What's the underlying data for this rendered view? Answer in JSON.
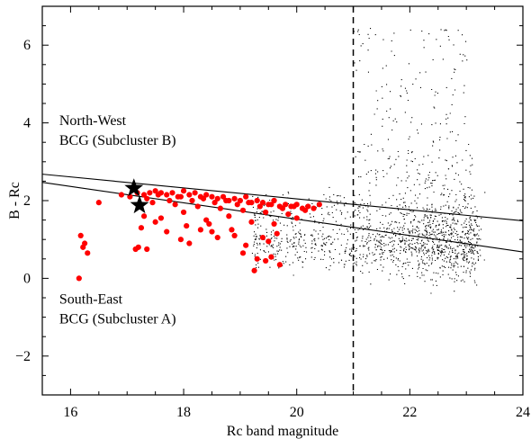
{
  "chart_data": {
    "type": "scatter",
    "xlabel": "Rc band magnitude",
    "ylabel": "B - Rc",
    "xlim": [
      15.5,
      24
    ],
    "ylim": [
      -3,
      7
    ],
    "xticks": [
      16,
      18,
      20,
      22,
      24
    ],
    "yticks": [
      -2,
      0,
      2,
      4,
      6
    ],
    "grid": false,
    "magnitude_cut": 21,
    "annotations": [
      {
        "lines": [
          "North-West",
          "BCG (Subcluster B)"
        ],
        "x": 15.8,
        "y": 3.95
      },
      {
        "lines": [
          "South-East",
          "BCG (Subcluster A)"
        ],
        "x": 15.8,
        "y": -0.65
      }
    ],
    "upper_line": {
      "x": [
        15.5,
        24
      ],
      "y": [
        2.68,
        1.48
      ]
    },
    "lower_line": {
      "x": [
        15.5,
        24
      ],
      "y": [
        2.47,
        0.68
      ]
    },
    "bcg_stars": [
      {
        "name": "North-West BCG (Subcluster B)",
        "x": 17.12,
        "y": 2.32
      },
      {
        "name": "South-East BCG (Subcluster A)",
        "x": 17.22,
        "y": 1.88
      }
    ],
    "members": {
      "color": "#ff0000",
      "x": [
        16.15,
        16.22,
        16.3,
        16.25,
        16.18,
        16.5,
        16.9,
        17.05,
        17.18,
        17.3,
        17.4,
        17.5,
        17.6,
        17.7,
        17.8,
        17.9,
        18.0,
        18.1,
        18.2,
        18.3,
        18.4,
        18.5,
        18.6,
        18.7,
        18.8,
        18.9,
        19.0,
        19.1,
        19.2,
        19.3,
        19.4,
        19.5,
        19.6,
        19.7,
        19.8,
        19.9,
        20.0,
        20.1,
        20.2,
        20.3,
        20.4,
        17.35,
        17.55,
        17.75,
        17.95,
        18.15,
        18.35,
        18.55,
        18.75,
        18.95,
        19.15,
        19.35,
        19.55,
        19.75,
        19.95,
        20.15,
        17.45,
        17.85,
        18.25,
        18.65,
        19.05,
        19.45,
        19.85,
        17.3,
        17.6,
        18.0,
        18.4,
        18.8,
        19.2,
        19.6,
        20.0,
        17.25,
        17.7,
        18.3,
        18.9,
        19.4,
        19.65,
        17.2,
        17.35,
        17.95,
        18.1,
        18.6,
        19.1,
        19.5,
        17.15,
        19.3,
        19.45,
        19.7,
        19.25,
        18.5,
        18.05,
        17.5,
        19.55,
        19.05,
        18.85,
        18.45
      ],
      "y": [
        0.0,
        0.8,
        0.65,
        0.9,
        1.1,
        1.95,
        2.15,
        2.1,
        2.2,
        2.15,
        2.2,
        2.25,
        2.2,
        2.15,
        2.2,
        2.1,
        2.25,
        2.15,
        2.2,
        2.1,
        2.15,
        2.1,
        2.05,
        2.1,
        2.0,
        2.05,
        2.0,
        2.1,
        1.95,
        2.0,
        1.95,
        1.9,
        2.0,
        1.85,
        1.9,
        1.85,
        1.9,
        1.8,
        1.85,
        1.8,
        1.9,
        2.05,
        2.15,
        2.0,
        2.1,
        2.0,
        2.05,
        1.95,
        2.0,
        1.9,
        1.95,
        1.85,
        1.9,
        1.8,
        1.85,
        1.75,
        1.95,
        1.9,
        1.85,
        1.8,
        1.75,
        1.7,
        1.65,
        1.6,
        1.55,
        1.7,
        1.5,
        1.6,
        1.45,
        1.4,
        1.55,
        1.3,
        1.2,
        1.25,
        1.1,
        1.05,
        1.15,
        0.8,
        0.75,
        1.0,
        0.9,
        1.05,
        0.85,
        0.95,
        0.75,
        0.5,
        0.45,
        0.35,
        0.2,
        1.2,
        1.35,
        1.45,
        0.55,
        0.65,
        1.25,
        1.4
      ]
    }
  }
}
